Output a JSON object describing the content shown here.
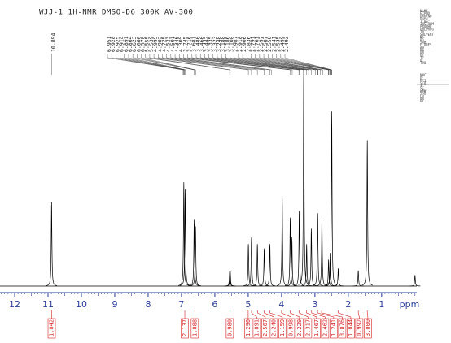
{
  "title": "WJJ-1 1H-NMR DMSO-D6 300K AV-300",
  "parameters": [
    "NAME",
    "EXPNO",
    "PROCNO",
    "Date_",
    "Time",
    "INSTRUM",
    "PROBHD",
    "PULPROG",
    "TD",
    "SOLVENT",
    "NS",
    "DS",
    "SWH",
    "FIDRES",
    "AQ",
    "RG",
    "DW",
    "DE",
    "TE",
    "D1",
    "TD0",
    "NUC1",
    "P1",
    "PL1",
    "SFO1",
    "SI",
    "SF",
    "WDW",
    "SSB",
    "LB",
    "GB",
    "PC"
  ],
  "chart_data": {
    "type": "nmr",
    "x_label": "ppm",
    "xlim": [
      12.44,
      -0.2
    ],
    "ylim": [
      0,
      100
    ],
    "xticks": [
      12,
      11,
      10,
      9,
      8,
      7,
      6,
      5,
      4,
      3,
      2,
      1
    ],
    "color": "#000000",
    "axis_color": "#2a3f9a",
    "integral_color": "#d62020",
    "peak_labels": [
      "10.894",
      "6.951",
      "6.928",
      "6.925",
      "6.914",
      "6.891",
      "6.864",
      "6.623",
      "6.600",
      "6.578",
      "5.555",
      "5.539",
      "4.995",
      "4.902",
      "4.725",
      "4.523",
      "4.501",
      "4.346",
      "4.305",
      "3.745",
      "3.716",
      "3.681",
      "3.480",
      "3.460",
      "3.442",
      "3.335",
      "3.323",
      "3.248",
      "3.188",
      "3.186",
      "3.108",
      "2.987",
      "2.918",
      "2.906",
      "2.836",
      "2.791",
      "2.761",
      "2.597",
      "2.587",
      "2.558",
      "2.541",
      "2.535",
      "2.499",
      "2.493"
    ],
    "peaks": {
      "ppm": [
        10.894,
        6.93,
        6.89,
        6.62,
        6.58,
        5.555,
        5.539,
        4.995,
        4.902,
        4.725,
        4.52,
        4.35,
        3.98,
        3.74,
        3.69,
        3.47,
        3.335,
        3.248,
        3.108,
        2.918,
        2.79,
        2.59,
        2.54,
        2.496,
        2.3,
        1.7,
        1.43,
        0.0
      ],
      "heights": [
        38,
        47,
        44,
        30,
        27,
        7,
        7,
        19,
        22,
        19,
        17,
        19,
        40,
        31,
        22,
        34,
        100,
        19,
        26,
        33,
        31,
        12,
        15,
        79,
        8,
        7,
        66,
        5
      ]
    },
    "integrals": {
      "ppm": [
        10.89,
        6.9,
        6.6,
        5.55,
        5.0,
        4.9,
        4.72,
        4.52,
        4.35,
        4.0,
        3.74,
        3.47,
        3.25,
        3.1,
        2.92,
        2.8,
        2.3,
        1.7,
        1.43
      ],
      "values": [
        1.042,
        2.137,
        1.088,
        0.98,
        1.29,
        1.891,
        2.567,
        2.24,
        1.159,
        0.998,
        2.229,
        2.317,
        1.467,
        2.462,
        1.241,
        3.076,
        1.044,
        0.992,
        3.0
      ],
      "value_labels": [
        "1.042",
        "2.137",
        "1.088",
        "0.980",
        "1.290",
        "1.891",
        "2.567",
        "2.240",
        "1.159",
        "0.998",
        "2.229",
        "2.317",
        "1.467",
        "2.462",
        "1.241",
        "3.076",
        "1.044",
        "0.992",
        "3.000"
      ]
    }
  }
}
